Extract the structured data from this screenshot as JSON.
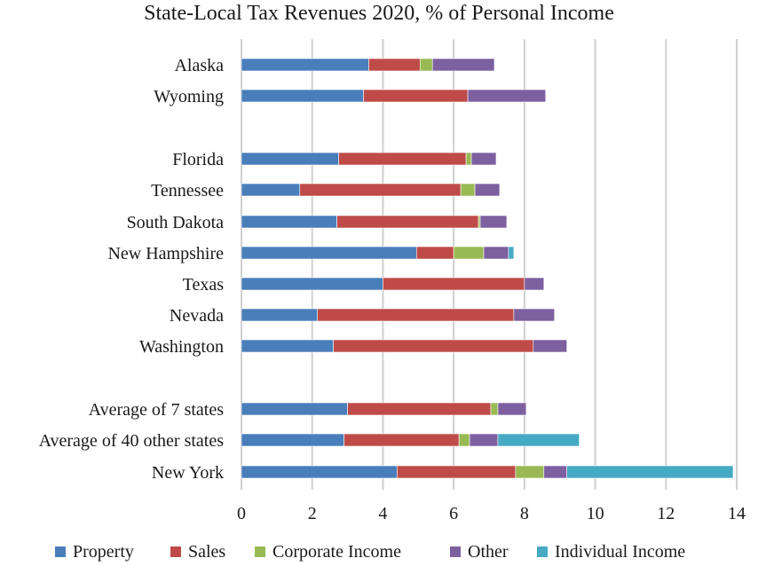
{
  "chart_data": {
    "type": "bar",
    "orientation": "horizontal",
    "stacked": true,
    "title": "State-Local Tax Revenues 2020, % of Personal Income",
    "xlim": [
      0,
      14
    ],
    "x_ticks": [
      "0",
      "2",
      "4",
      "6",
      "8",
      "10",
      "12",
      "14"
    ],
    "grid": true,
    "legend_position": "bottom",
    "categories": [
      "Alaska",
      "Wyoming",
      "Florida",
      "Tennessee",
      "South Dakota",
      "New Hampshire",
      "Texas",
      "Nevada",
      "Washington",
      "Average of 7 states",
      "Average of 40 other states",
      "New York"
    ],
    "series": [
      {
        "name": "Property",
        "color": "#4a7ebb",
        "values": [
          3.6,
          3.45,
          2.75,
          1.65,
          2.7,
          4.95,
          4.0,
          2.15,
          2.6,
          3.0,
          2.9,
          4.4
        ]
      },
      {
        "name": "Sales",
        "color": "#be4b48",
        "values": [
          1.45,
          2.95,
          3.6,
          4.55,
          4.0,
          1.05,
          4.0,
          5.55,
          5.65,
          4.05,
          3.25,
          3.35
        ]
      },
      {
        "name": "Corporate Income",
        "color": "#98b954",
        "values": [
          0.35,
          0.0,
          0.15,
          0.4,
          0.05,
          0.85,
          0.0,
          0.0,
          0.0,
          0.2,
          0.3,
          0.8
        ]
      },
      {
        "name": "Other",
        "color": "#7d60a0",
        "values": [
          1.75,
          2.2,
          0.7,
          0.7,
          0.75,
          0.7,
          0.55,
          1.15,
          0.95,
          0.8,
          0.8,
          0.65
        ]
      },
      {
        "name": "Individual Income",
        "color": "#46aac5",
        "values": [
          0,
          0,
          0,
          0,
          0,
          0.15,
          0,
          0,
          0,
          0,
          2.3,
          4.7
        ]
      }
    ]
  }
}
